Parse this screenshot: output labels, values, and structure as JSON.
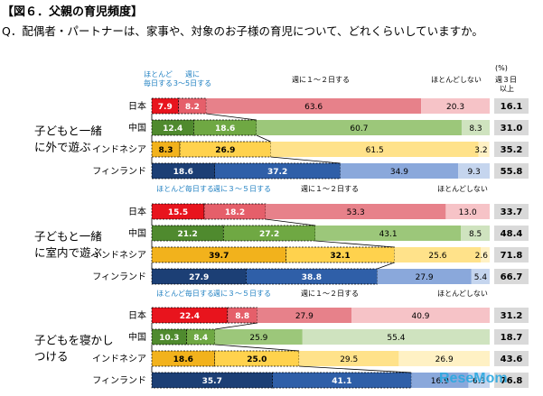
{
  "title": "【図６．父親の育児頻度】",
  "question": "Q．配偶者・パートナーは、家事や、対象のお子様の育児について、どれくらいしていますか。",
  "percent_unit": "(%)",
  "total_header": [
    "週３日",
    "以上"
  ],
  "watermark": "ReseMom",
  "chart_data": {
    "type": "bar",
    "orientation": "horizontal",
    "stacked": true,
    "xlim": [
      0,
      100
    ],
    "series": [
      {
        "name": "ほとんど毎日する"
      },
      {
        "name": "週に３～５日する"
      },
      {
        "name": "週に１～２日する"
      },
      {
        "name": "ほとんどしない"
      }
    ],
    "legend_labels": {
      "g0": [
        "ほとんど毎日する",
        "週に３～５日する",
        "週に１～２日する",
        "ほとんどしない"
      ],
      "g0_break": [
        "ほとんど",
        "毎日する",
        "週に",
        "3～5日する"
      ]
    },
    "groups": [
      {
        "label": [
          "子どもと一緒",
          "に外で遊ぶ"
        ],
        "rows": [
          {
            "country": "日本",
            "values": [
              7.9,
              8.2,
              63.6,
              20.3
            ],
            "total": "16.1"
          },
          {
            "country": "中国",
            "values": [
              12.4,
              18.6,
              60.7,
              8.3
            ],
            "total": "31.0"
          },
          {
            "country": "インドネシア",
            "values": [
              8.3,
              26.9,
              61.5,
              3.2
            ],
            "total": "35.2"
          },
          {
            "country": "フィンランド",
            "values": [
              18.6,
              37.2,
              34.9,
              9.3
            ],
            "total": "55.8"
          }
        ]
      },
      {
        "label": [
          "子どもと一緒",
          "に室内で遊ぶ"
        ],
        "rows": [
          {
            "country": "日本",
            "values": [
              15.5,
              18.2,
              53.3,
              13.0
            ],
            "total": "33.7"
          },
          {
            "country": "中国",
            "values": [
              21.2,
              27.2,
              43.1,
              8.5
            ],
            "total": "48.4"
          },
          {
            "country": "インドネシア",
            "values": [
              39.7,
              32.1,
              25.6,
              2.6
            ],
            "total": "71.8"
          },
          {
            "country": "フィンランド",
            "values": [
              27.9,
              38.8,
              27.9,
              5.4
            ],
            "total": "66.7"
          }
        ]
      },
      {
        "label": [
          "子どもを寝かし",
          "つける"
        ],
        "rows": [
          {
            "country": "日本",
            "values": [
              22.4,
              8.8,
              27.9,
              40.9
            ],
            "total": "31.2"
          },
          {
            "country": "中国",
            "values": [
              10.3,
              8.4,
              25.9,
              55.4
            ],
            "total": "18.7"
          },
          {
            "country": "インドネシア",
            "values": [
              18.6,
              25.0,
              29.5,
              26.9
            ],
            "total": "43.6"
          },
          {
            "country": "フィンランド",
            "values": [
              35.7,
              41.1,
              16.9,
              6.3
            ],
            "total": "76.8"
          }
        ]
      }
    ],
    "colors": {
      "日本": [
        "#e8141d",
        "#e55f6a",
        "#e7818a",
        "#f6c3c7"
      ],
      "中国": [
        "#4f8a2e",
        "#6fa843",
        "#9cc77a",
        "#cfe3bf"
      ],
      "インドネシア": [
        "#f2b21c",
        "#ffd24d",
        "#ffe28a",
        "#fff1c4"
      ],
      "フィンランド": [
        "#1c3f75",
        "#2f5fa8",
        "#8aa8db",
        "#c5d5ee"
      ]
    }
  }
}
